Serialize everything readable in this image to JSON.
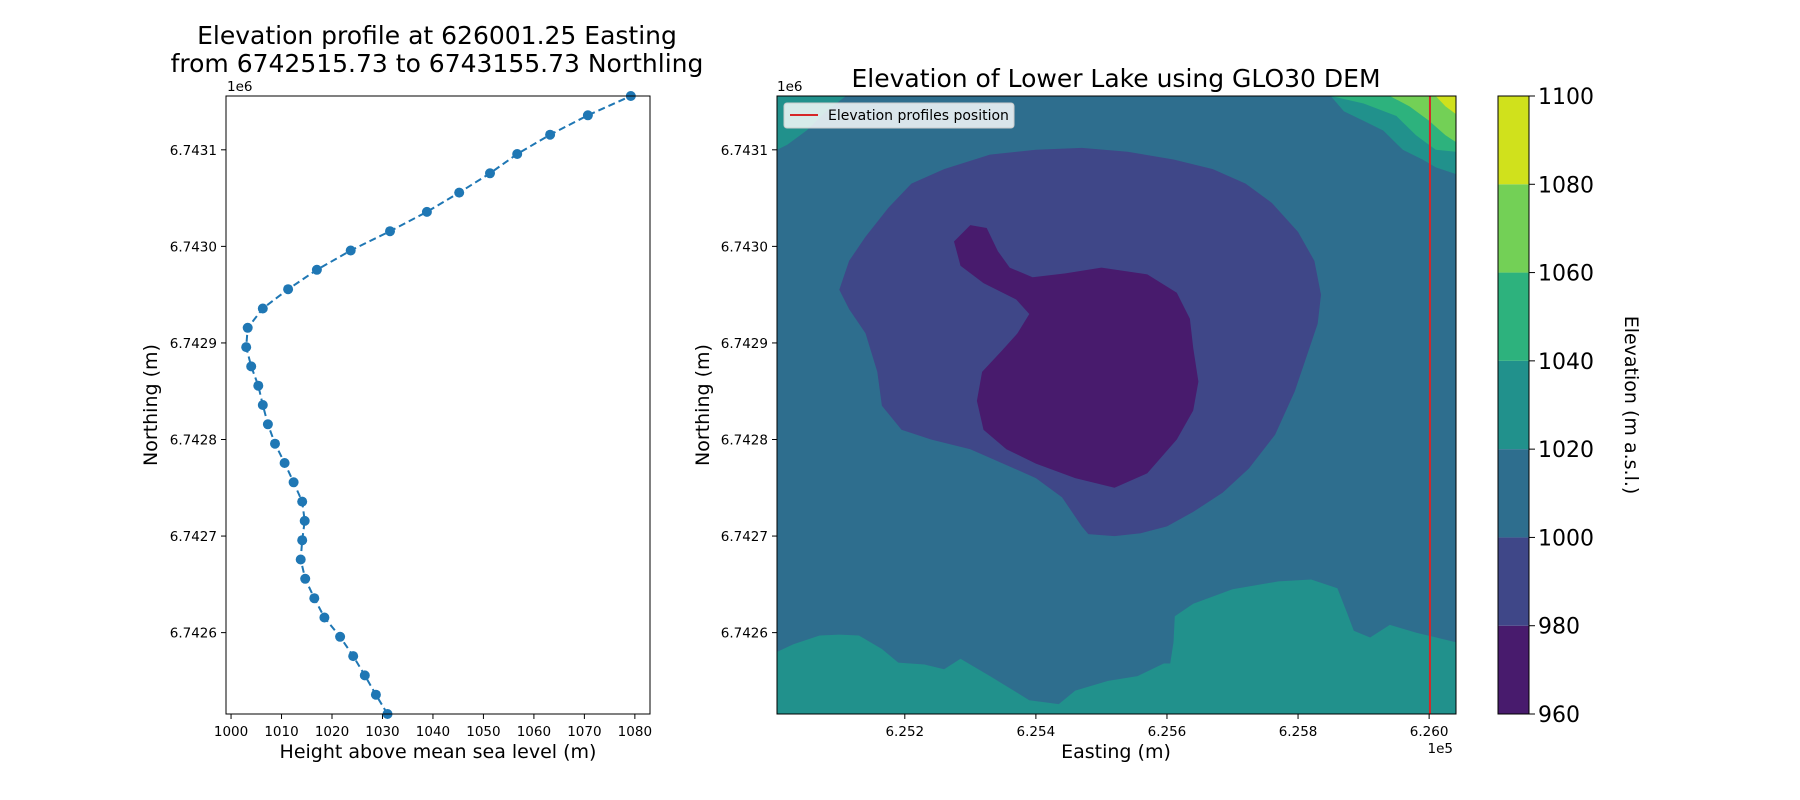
{
  "chart_data": [
    {
      "type": "line",
      "title_line1": "Elevation profile at 626001.25 Easting",
      "title_line2": "from 6742515.73 to 6743155.73 Northling",
      "xlabel": "Height above mean sea level (m)",
      "ylabel": "Northing (m)",
      "y_offset_label": "1e6",
      "xlim": [
        999,
        1083
      ],
      "ylim": [
        6742515.73,
        6743155.73
      ],
      "x_ticks": [
        1000,
        1010,
        1020,
        1030,
        1040,
        1050,
        1060,
        1070,
        1080
      ],
      "x_tick_labels": [
        "1000",
        "1010",
        "1020",
        "1030",
        "1040",
        "1050",
        "1060",
        "1070",
        "1080"
      ],
      "y_ticks": [
        6742600,
        6742700,
        6742800,
        6742900,
        6743000,
        6743100
      ],
      "y_tick_labels": [
        "6.7426",
        "6.7427",
        "6.7428",
        "6.7429",
        "6.7430",
        "6.7431"
      ],
      "line_color": "#1f77b4",
      "line_style": "dashed",
      "marker": "circle",
      "series": [
        {
          "name": "profile",
          "points": [
            [
              1031.0,
              6742515.7
            ],
            [
              1028.7,
              6742535.7
            ],
            [
              1026.5,
              6742555.7
            ],
            [
              1024.2,
              6742575.7
            ],
            [
              1021.6,
              6742595.7
            ],
            [
              1018.5,
              6742615.7
            ],
            [
              1016.5,
              6742635.7
            ],
            [
              1014.7,
              6742655.7
            ],
            [
              1013.8,
              6742675.7
            ],
            [
              1014.1,
              6742695.7
            ],
            [
              1014.6,
              6742715.7
            ],
            [
              1014.1,
              6742735.7
            ],
            [
              1012.4,
              6742755.7
            ],
            [
              1010.6,
              6742775.7
            ],
            [
              1008.7,
              6742795.7
            ],
            [
              1007.3,
              6742815.7
            ],
            [
              1006.3,
              6742835.7
            ],
            [
              1005.4,
              6742855.7
            ],
            [
              1004.0,
              6742875.7
            ],
            [
              1003.0,
              6742895.7
            ],
            [
              1003.3,
              6742915.7
            ],
            [
              1006.3,
              6742935.7
            ],
            [
              1011.3,
              6742955.7
            ],
            [
              1017.0,
              6742975.7
            ],
            [
              1023.7,
              6742995.7
            ],
            [
              1031.5,
              6743015.7
            ],
            [
              1038.8,
              6743035.7
            ],
            [
              1045.2,
              6743055.7
            ],
            [
              1051.3,
              6743075.7
            ],
            [
              1056.7,
              6743095.7
            ],
            [
              1063.2,
              6743115.7
            ],
            [
              1070.7,
              6743135.7
            ],
            [
              1079.2,
              6743155.7
            ]
          ]
        }
      ]
    },
    {
      "type": "heatmap",
      "subtype": "filled-contour",
      "title": "Elevation of Lower Lake using GLO30 DEM",
      "xlabel": "Easting (m)",
      "ylabel": "Northing (m)",
      "x_offset_label": "1e5",
      "y_offset_label": "1e6",
      "xlim": [
        625005,
        626041
      ],
      "ylim": [
        6742515.73,
        6743155.73
      ],
      "x_ticks": [
        625200,
        625400,
        625600,
        625800,
        626000
      ],
      "x_tick_labels": [
        "6.252",
        "6.254",
        "6.256",
        "6.258",
        "6.260"
      ],
      "y_ticks": [
        6742600,
        6742700,
        6742800,
        6742900,
        6743000,
        6743100
      ],
      "y_tick_labels": [
        "6.7426",
        "6.7427",
        "6.7428",
        "6.7429",
        "6.7430",
        "6.7431"
      ],
      "legend": {
        "label": "Elevation profiles position",
        "color": "#d62728",
        "position": "top-left"
      },
      "profile_line_easting": 626001.25,
      "colorbar": {
        "label": "Elevation (m a.s.l.)",
        "levels": [
          960,
          980,
          1000,
          1020,
          1040,
          1060,
          1080,
          1100
        ],
        "level_labels": [
          "960",
          "980",
          "1000",
          "1020",
          "1040",
          "1060",
          "1080",
          "1100"
        ],
        "colors": [
          "#481b6d",
          "#3f4788",
          "#2e6e8e",
          "#21918c",
          "#2db27d",
          "#73d056",
          "#d0e11c"
        ]
      },
      "contour_regions": [
        {
          "level_index": 3,
          "points": [
            [
              625005,
              6742515.7
            ],
            [
              626041,
              6742515.7
            ],
            [
              626041,
              6743155.7
            ],
            [
              625005,
              6743155.7
            ]
          ]
        },
        {
          "level_index": 2,
          "points": [
            [
              625005,
              6742580
            ],
            [
              625030,
              6742588
            ],
            [
              625070,
              6742597
            ],
            [
              625100,
              6742598
            ],
            [
              625130,
              6742597
            ],
            [
              625165,
              6742583
            ],
            [
              625190,
              6742569
            ],
            [
              625230,
              6742567
            ],
            [
              625260,
              6742562
            ],
            [
              625285,
              6742573
            ],
            [
              625330,
              6742555
            ],
            [
              625390,
              6742530
            ],
            [
              625435,
              6742526
            ],
            [
              625460,
              6742540
            ],
            [
              625510,
              6742550
            ],
            [
              625555,
              6742555
            ],
            [
              625595,
              6742568
            ],
            [
              625605,
              6742568
            ],
            [
              625610,
              6742590
            ],
            [
              625612,
              6742617
            ],
            [
              625640,
              6742630
            ],
            [
              625700,
              6742645
            ],
            [
              625770,
              6742653
            ],
            [
              625820,
              6742655
            ],
            [
              625860,
              6742646
            ],
            [
              625875,
              6742620
            ],
            [
              625885,
              6742602
            ],
            [
              625910,
              6742595
            ],
            [
              625940,
              6742608
            ],
            [
              625980,
              6742600
            ],
            [
              626041,
              6742590
            ],
            [
              626041,
              6743075
            ],
            [
              626010,
              6743082
            ],
            [
              625990,
              6743090
            ],
            [
              625960,
              6743100
            ],
            [
              625930,
              6743120
            ],
            [
              625900,
              6743130
            ],
            [
              625870,
              6743140
            ],
            [
              625850,
              6743155.7
            ],
            [
              625110,
              6743155.7
            ],
            [
              625080,
              6743140
            ],
            [
              625050,
              6743120
            ],
            [
              625020,
              6743105
            ],
            [
              625005,
              6743100
            ]
          ]
        },
        {
          "level_index": 1,
          "points": [
            [
              625100,
              6742955
            ],
            [
              625115,
              6742985
            ],
            [
              625140,
              6743010
            ],
            [
              625175,
              6743040
            ],
            [
              625210,
              6743065
            ],
            [
              625260,
              6743080
            ],
            [
              625330,
              6743095
            ],
            [
              625400,
              6743100
            ],
            [
              625470,
              6743102
            ],
            [
              625540,
              6743098
            ],
            [
              625610,
              6743090
            ],
            [
              625670,
              6743080
            ],
            [
              625720,
              6743065
            ],
            [
              625760,
              6743045
            ],
            [
              625800,
              6743015
            ],
            [
              625825,
              6742985
            ],
            [
              625835,
              6742950
            ],
            [
              625830,
              6742920
            ],
            [
              625815,
              6742890
            ],
            [
              625795,
              6742850
            ],
            [
              625765,
              6742805
            ],
            [
              625725,
              6742770
            ],
            [
              625685,
              6742745
            ],
            [
              625640,
              6742725
            ],
            [
              625600,
              6742710
            ],
            [
              625560,
              6742703
            ],
            [
              625520,
              6742700
            ],
            [
              625480,
              6742702
            ],
            [
              625470,
              6742710
            ],
            [
              625440,
              6742740
            ],
            [
              625400,
              6742760
            ],
            [
              625350,
              6742775
            ],
            [
              625300,
              6742790
            ],
            [
              625240,
              6742800
            ],
            [
              625195,
              6742810
            ],
            [
              625165,
              6742835
            ],
            [
              625158,
              6742870
            ],
            [
              625140,
              6742910
            ],
            [
              625115,
              6742935
            ]
          ]
        },
        {
          "level_index": 0,
          "points": [
            [
              625275,
              6743005
            ],
            [
              625300,
              6743022
            ],
            [
              625325,
              6743019
            ],
            [
              625342,
              6742995
            ],
            [
              625360,
              6742978
            ],
            [
              625395,
              6742968
            ],
            [
              625445,
              6742972
            ],
            [
              625500,
              6742978
            ],
            [
              625570,
              6742971
            ],
            [
              625615,
              6742952
            ],
            [
              625635,
              6742925
            ],
            [
              625640,
              6742895
            ],
            [
              625648,
              6742860
            ],
            [
              625640,
              6742830
            ],
            [
              625615,
              6742800
            ],
            [
              625570,
              6742765
            ],
            [
              625520,
              6742750
            ],
            [
              625460,
              6742760
            ],
            [
              625400,
              6742775
            ],
            [
              625355,
              6742790
            ],
            [
              625320,
              6742810
            ],
            [
              625310,
              6742840
            ],
            [
              625318,
              6742870
            ],
            [
              625348,
              6742892
            ],
            [
              625372,
              6742910
            ],
            [
              625390,
              6742930
            ],
            [
              625370,
              6742945
            ],
            [
              625320,
              6742962
            ],
            [
              625285,
              6742980
            ]
          ]
        },
        {
          "level_index": 3,
          "points": [
            [
              625005,
              6743120
            ],
            [
              625020,
              6743105
            ],
            [
              625050,
              6743120
            ],
            [
              625080,
              6743140
            ],
            [
              625110,
              6743155.7
            ],
            [
              625005,
              6743155.7
            ]
          ]
        },
        {
          "level_index": 3,
          "points": [
            [
              625850,
              6743155.7
            ],
            [
              625870,
              6743140
            ],
            [
              625900,
              6743130
            ],
            [
              625930,
              6743120
            ],
            [
              625960,
              6743100
            ],
            [
              625990,
              6743090
            ],
            [
              626010,
              6743082
            ],
            [
              626041,
              6743075
            ],
            [
              626041,
              6743155.7
            ]
          ]
        },
        {
          "level_index": 4,
          "points": [
            [
              625850,
              6743155.7
            ],
            [
              625900,
              6743148
            ],
            [
              625950,
              6743135
            ],
            [
              625980,
              6743115
            ],
            [
              626010,
              6743100
            ],
            [
              626041,
              6743098
            ],
            [
              626041,
              6743155.7
            ]
          ]
        },
        {
          "level_index": 5,
          "points": [
            [
              625940,
              6743155.7
            ],
            [
              625970,
              6743145
            ],
            [
              626000,
              6743130
            ],
            [
              626025,
              6743115
            ],
            [
              626041,
              6743108
            ],
            [
              626041,
              6743155.7
            ]
          ]
        },
        {
          "level_index": 6,
          "points": [
            [
              626010,
              6743155.7
            ],
            [
              626025,
              6743145
            ],
            [
              626041,
              6743137
            ],
            [
              626041,
              6743155.7
            ]
          ]
        }
      ]
    }
  ]
}
